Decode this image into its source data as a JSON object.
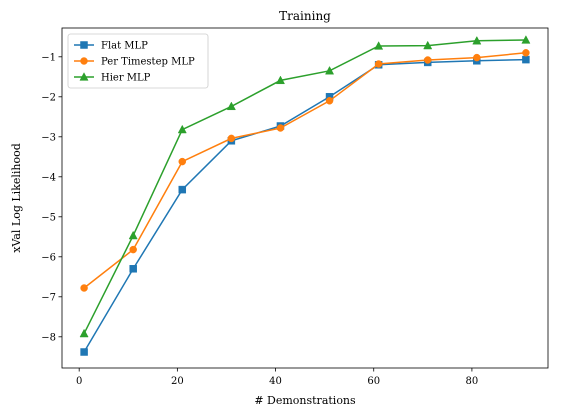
{
  "chart_data": {
    "type": "line",
    "title": "Training",
    "xlabel": "# Demonstrations",
    "ylabel": "xVal Log Likelihood",
    "xlim": [
      -3.5,
      95.5
    ],
    "ylim": [
      -8.78,
      -0.28
    ],
    "xticks": [
      0,
      20,
      40,
      60,
      80
    ],
    "yticks": [
      -8,
      -7,
      -6,
      -5,
      -4,
      -3,
      -2,
      -1
    ],
    "x": [
      1,
      11,
      21,
      31,
      41,
      51,
      61,
      71,
      81,
      91
    ],
    "legend_position": "upper-left",
    "grid": false,
    "series": [
      {
        "name": "Flat MLP",
        "color": "#1f77b4",
        "marker": "square",
        "values": [
          -8.38,
          -6.3,
          -4.32,
          -3.1,
          -2.73,
          -2.0,
          -1.2,
          -1.14,
          -1.1,
          -1.07
        ]
      },
      {
        "name": "Per Timestep MLP",
        "color": "#ff7f0e",
        "marker": "circle",
        "values": [
          -6.78,
          -5.82,
          -3.62,
          -3.04,
          -2.78,
          -2.1,
          -1.18,
          -1.08,
          -1.02,
          -0.9
        ]
      },
      {
        "name": "Hier MLP",
        "color": "#2ca02c",
        "marker": "triangle",
        "values": [
          -7.92,
          -5.47,
          -2.82,
          -2.24,
          -1.59,
          -1.35,
          -0.73,
          -0.72,
          -0.6,
          -0.58
        ]
      }
    ]
  }
}
